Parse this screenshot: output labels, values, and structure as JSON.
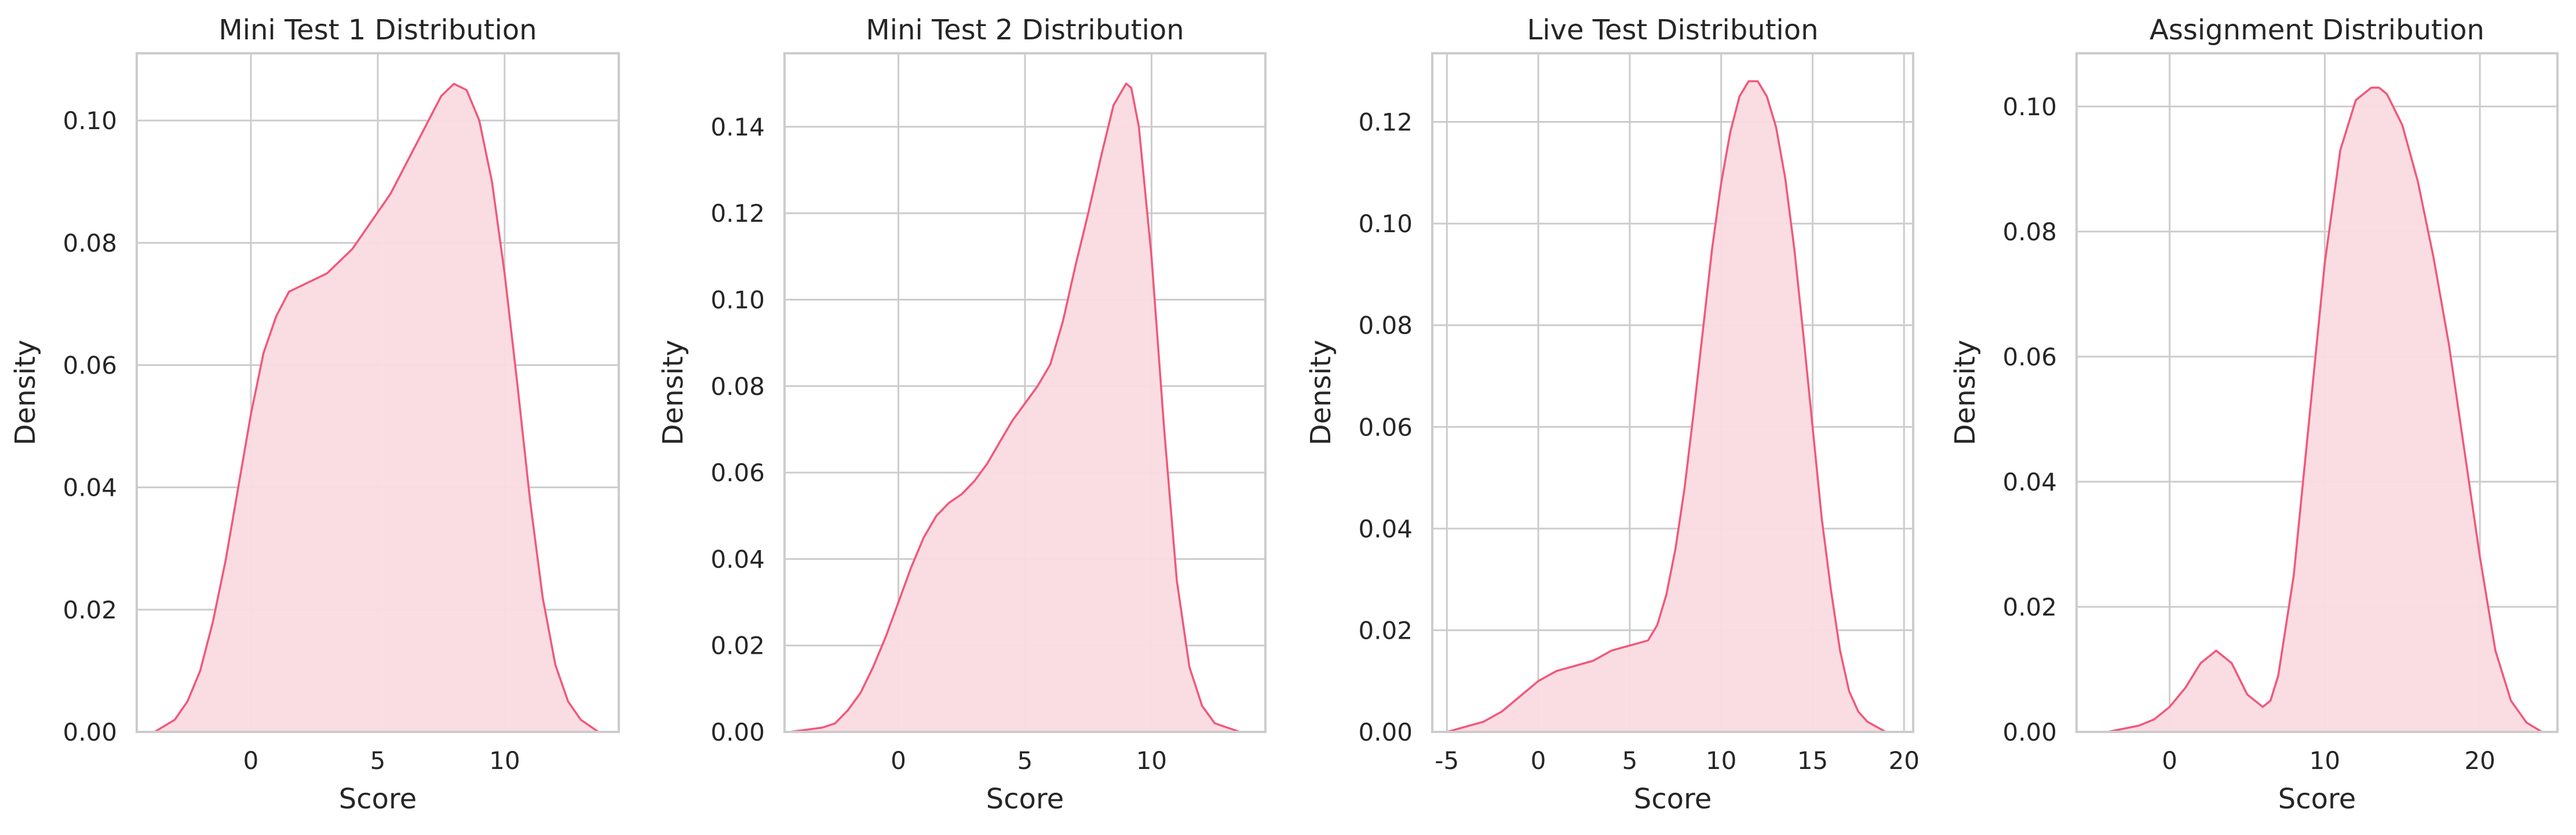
{
  "colors": {
    "line": "#f2577a",
    "fill": "#fadbe1",
    "grid": "#cccccc",
    "spine": "#cccccc",
    "background": "#ffffff"
  },
  "chart_data": [
    {
      "type": "area",
      "title": "Mini Test 1 Distribution",
      "xlabel": "Score",
      "ylabel": "Density",
      "xlim": [
        -4.5,
        14.5
      ],
      "ylim": [
        0,
        0.111
      ],
      "xticks": [
        0,
        5,
        10
      ],
      "yticks": [
        0.0,
        0.02,
        0.04,
        0.06,
        0.08,
        0.1
      ],
      "ytick_labels": [
        "0.00",
        "0.02",
        "0.04",
        "0.06",
        "0.08",
        "0.10"
      ],
      "grid": true,
      "series": [
        {
          "x": [
            -3.8,
            -3,
            -2.5,
            -2,
            -1.5,
            -1,
            -0.5,
            0,
            0.5,
            1,
            1.5,
            2,
            2.5,
            3,
            3.5,
            4,
            4.5,
            5,
            5.5,
            6,
            6.5,
            7,
            7.5,
            8,
            8.5,
            9,
            9.5,
            10,
            10.5,
            11,
            11.5,
            12,
            12.5,
            13,
            13.7
          ],
          "y": [
            0.0,
            0.002,
            0.005,
            0.01,
            0.018,
            0.028,
            0.04,
            0.052,
            0.062,
            0.068,
            0.072,
            0.073,
            0.074,
            0.075,
            0.077,
            0.079,
            0.082,
            0.085,
            0.088,
            0.092,
            0.096,
            0.1,
            0.104,
            0.106,
            0.105,
            0.1,
            0.09,
            0.075,
            0.057,
            0.038,
            0.022,
            0.011,
            0.005,
            0.002,
            0.0
          ]
        }
      ]
    },
    {
      "type": "area",
      "title": "Mini Test 2 Distribution",
      "xlabel": "Score",
      "ylabel": "Density",
      "xlim": [
        -4.5,
        14.5
      ],
      "ylim": [
        0,
        0.157
      ],
      "xticks": [
        0,
        5,
        10
      ],
      "yticks": [
        0.0,
        0.02,
        0.04,
        0.06,
        0.08,
        0.1,
        0.12,
        0.14
      ],
      "ytick_labels": [
        "0.00",
        "0.02",
        "0.04",
        "0.06",
        "0.08",
        "0.10",
        "0.12",
        "0.14"
      ],
      "grid": true,
      "series": [
        {
          "x": [
            -4.3,
            -3,
            -2.5,
            -2,
            -1.5,
            -1,
            -0.5,
            0,
            0.5,
            1,
            1.5,
            2,
            2.5,
            3,
            3.5,
            4,
            4.5,
            5,
            5.5,
            6,
            6.5,
            7,
            7.5,
            8,
            8.5,
            9,
            9.2,
            9.5,
            10,
            10.5,
            11,
            11.5,
            12,
            12.5,
            13.5
          ],
          "y": [
            0.0,
            0.001,
            0.002,
            0.005,
            0.009,
            0.015,
            0.022,
            0.03,
            0.038,
            0.045,
            0.05,
            0.053,
            0.055,
            0.058,
            0.062,
            0.067,
            0.072,
            0.076,
            0.08,
            0.085,
            0.095,
            0.108,
            0.12,
            0.133,
            0.145,
            0.15,
            0.149,
            0.14,
            0.11,
            0.07,
            0.035,
            0.015,
            0.006,
            0.002,
            0.0
          ]
        }
      ]
    },
    {
      "type": "area",
      "title": "Live Test Distribution",
      "xlabel": "Score",
      "ylabel": "Density",
      "xlim": [
        -5.8,
        20.5
      ],
      "ylim": [
        0,
        0.1335
      ],
      "xticks": [
        -5,
        0,
        5,
        10,
        15,
        20
      ],
      "yticks": [
        0.0,
        0.02,
        0.04,
        0.06,
        0.08,
        0.1,
        0.12
      ],
      "ytick_labels": [
        "0.00",
        "0.02",
        "0.04",
        "0.06",
        "0.08",
        "0.10",
        "0.12"
      ],
      "grid": true,
      "series": [
        {
          "x": [
            -5,
            -4,
            -3,
            -2,
            -1,
            0,
            1,
            2,
            3,
            4,
            5,
            6,
            6.5,
            7,
            7.5,
            8,
            8.5,
            9,
            9.5,
            10,
            10.5,
            11,
            11.5,
            12,
            12.5,
            13,
            13.5,
            14,
            14.5,
            15,
            15.5,
            16,
            16.5,
            17,
            17.5,
            18,
            19
          ],
          "y": [
            0.0,
            0.001,
            0.002,
            0.004,
            0.007,
            0.01,
            0.012,
            0.013,
            0.014,
            0.016,
            0.017,
            0.018,
            0.021,
            0.027,
            0.036,
            0.048,
            0.063,
            0.079,
            0.095,
            0.108,
            0.118,
            0.125,
            0.128,
            0.128,
            0.125,
            0.119,
            0.109,
            0.095,
            0.078,
            0.06,
            0.042,
            0.028,
            0.016,
            0.008,
            0.004,
            0.002,
            0.0
          ]
        }
      ]
    },
    {
      "type": "area",
      "title": "Assignment Distribution",
      "xlabel": "Score",
      "ylabel": "Density",
      "xlim": [
        -6,
        25
      ],
      "ylim": [
        0,
        0.1085
      ],
      "xticks": [
        0,
        10,
        20
      ],
      "yticks": [
        0.0,
        0.02,
        0.04,
        0.06,
        0.08,
        0.1
      ],
      "ytick_labels": [
        "0.00",
        "0.02",
        "0.04",
        "0.06",
        "0.08",
        "0.10"
      ],
      "grid": true,
      "series": [
        {
          "x": [
            -4,
            -3,
            -2,
            -1,
            0,
            1,
            2,
            3,
            4,
            5,
            6,
            6.5,
            7,
            8,
            9,
            10,
            11,
            12,
            13,
            13.5,
            14,
            15,
            16,
            17,
            18,
            19,
            20,
            21,
            22,
            23,
            24
          ],
          "y": [
            0.0,
            0.0005,
            0.001,
            0.002,
            0.004,
            0.007,
            0.011,
            0.013,
            0.011,
            0.006,
            0.004,
            0.005,
            0.009,
            0.025,
            0.05,
            0.075,
            0.093,
            0.101,
            0.103,
            0.103,
            0.102,
            0.097,
            0.088,
            0.076,
            0.062,
            0.045,
            0.028,
            0.013,
            0.005,
            0.0015,
            0.0
          ]
        }
      ]
    }
  ]
}
